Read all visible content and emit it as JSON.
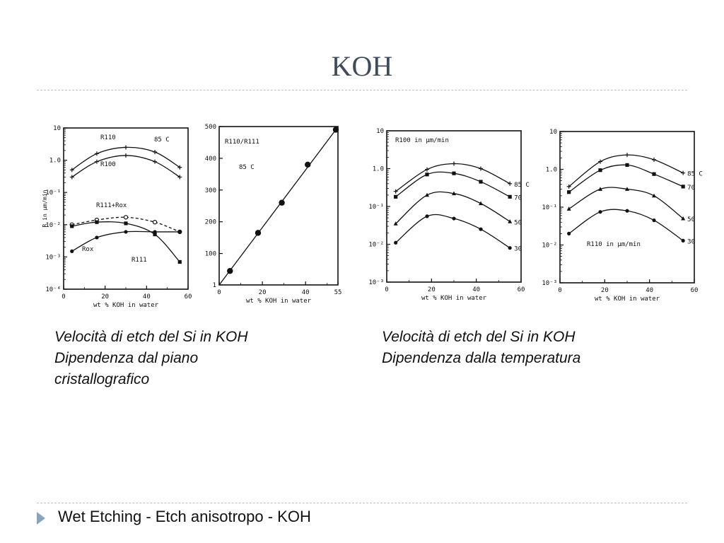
{
  "slide": {
    "title": "KOH",
    "footer": "Wet Etching - Etch anisotropo - KOH"
  },
  "captions": [
    {
      "lines": [
        "Velocità di etch del Si in KOH",
        "Dipendenza dal piano",
        "cristallografico"
      ]
    },
    {
      "lines": [
        "Velocità di etch del Si in KOH",
        "Dipendenza dalla temperatura"
      ]
    }
  ],
  "chart_data": [
    {
      "type": "line",
      "ylabel": "R in µm/min",
      "xlabel": "wt % KOH in water",
      "xlim": [
        0,
        60
      ],
      "xticks": [
        "0",
        "20",
        "40",
        "60"
      ],
      "ylim_log": [
        -4,
        1
      ],
      "yticks": [
        "10",
        "1.0",
        "10⁻¹",
        "10⁻²",
        "10⁻³",
        "10⁻⁴"
      ],
      "note": "85 C",
      "series": [
        {
          "name": "R110",
          "dashed": false,
          "x": [
            4,
            16,
            30,
            44,
            56
          ],
          "y": [
            0.5,
            1.6,
            2.5,
            1.8,
            0.6
          ]
        },
        {
          "name": "R100",
          "dashed": false,
          "x": [
            4,
            16,
            30,
            44,
            56
          ],
          "y": [
            0.3,
            0.9,
            1.4,
            0.9,
            0.3
          ]
        },
        {
          "name": "R111+Rox",
          "dashed": true,
          "x": [
            4,
            16,
            30,
            44,
            56
          ],
          "y": [
            0.01,
            0.014,
            0.017,
            0.012,
            0.006
          ]
        },
        {
          "name": "R111",
          "dashed": false,
          "x": [
            4,
            16,
            30,
            44,
            56
          ],
          "y": [
            0.009,
            0.012,
            0.011,
            0.005,
            0.0007
          ]
        },
        {
          "name": "Rox",
          "dashed": false,
          "x": [
            4,
            16,
            30,
            44,
            56
          ],
          "y": [
            0.0015,
            0.004,
            0.006,
            0.006,
            0.006
          ]
        }
      ]
    },
    {
      "type": "line",
      "xlabel": "wt % KOH in water",
      "xlim": [
        0,
        55
      ],
      "xticks": [
        "0",
        "20",
        "40",
        "55"
      ],
      "ylim": [
        1,
        500
      ],
      "yticks": [
        "500",
        "400",
        "300",
        "200",
        "100",
        "1"
      ],
      "annotation": "R110/R111",
      "note": "85 C",
      "series": [
        {
          "name": "R110/R111",
          "x": [
            5,
            18,
            29,
            41,
            54
          ],
          "y": [
            45,
            165,
            260,
            380,
            490
          ]
        }
      ]
    },
    {
      "type": "line",
      "xlabel": "wt % KOH in water",
      "xlim": [
        0,
        60
      ],
      "xticks": [
        "0",
        "20",
        "40",
        "60"
      ],
      "ylim_log": [
        -3,
        1
      ],
      "yticks": [
        "10",
        "1.0",
        "10⁻¹",
        "10⁻²",
        "10⁻³"
      ],
      "annotation": "R100 in µm/min",
      "series": [
        {
          "name": "85 C",
          "x": [
            4,
            18,
            30,
            42,
            55
          ],
          "y": [
            0.25,
            0.95,
            1.35,
            1.0,
            0.4
          ]
        },
        {
          "name": "70",
          "x": [
            4,
            18,
            30,
            42,
            55
          ],
          "y": [
            0.18,
            0.7,
            0.75,
            0.45,
            0.18
          ]
        },
        {
          "name": "50",
          "x": [
            4,
            18,
            30,
            42,
            55
          ],
          "y": [
            0.035,
            0.2,
            0.22,
            0.12,
            0.04
          ]
        },
        {
          "name": "30",
          "x": [
            4,
            18,
            30,
            42,
            55
          ],
          "y": [
            0.011,
            0.055,
            0.048,
            0.025,
            0.008
          ]
        }
      ]
    },
    {
      "type": "line",
      "xlabel": "wt % KOH in water",
      "xlim": [
        0,
        60
      ],
      "xticks": [
        "0",
        "20",
        "40",
        "60"
      ],
      "ylim_log": [
        -3,
        1
      ],
      "yticks": [
        "10",
        "1.0",
        "10⁻¹",
        "10⁻²",
        "10⁻³"
      ],
      "annotation": "R110 in µm/min",
      "series": [
        {
          "name": "85 C",
          "x": [
            4,
            18,
            30,
            42,
            55
          ],
          "y": [
            0.35,
            1.6,
            2.4,
            1.8,
            0.8
          ]
        },
        {
          "name": "70",
          "x": [
            4,
            18,
            30,
            42,
            55
          ],
          "y": [
            0.25,
            0.95,
            1.3,
            0.75,
            0.35
          ]
        },
        {
          "name": "50",
          "x": [
            4,
            18,
            30,
            42,
            55
          ],
          "y": [
            0.09,
            0.3,
            0.3,
            0.2,
            0.05
          ]
        },
        {
          "name": "30",
          "x": [
            4,
            18,
            30,
            42,
            55
          ],
          "y": [
            0.02,
            0.075,
            0.08,
            0.045,
            0.013
          ]
        }
      ]
    }
  ]
}
